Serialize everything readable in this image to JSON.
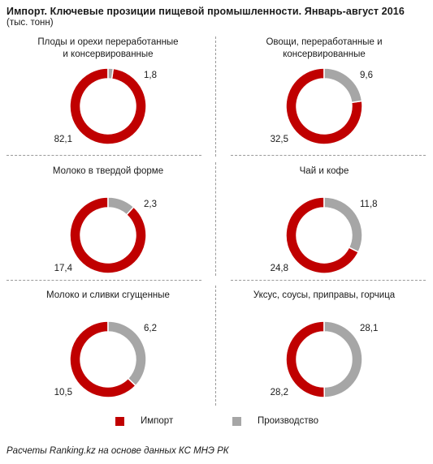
{
  "title": "Импорт. Ключевые прозиции пищевой промышленности. Январь-август  2016",
  "subtitle": "(тыс. тонн)",
  "legend": [
    {
      "name": "Импорт",
      "color": "#c00000"
    },
    {
      "name": "Производство",
      "color": "#a6a6a6"
    }
  ],
  "source": "Расчеты Ranking.kz на основе данных КС МНЭ РК",
  "chart_data": [
    {
      "type": "pie",
      "title": "Плоды и орехи переработанные и консервированные",
      "categories": [
        "Импорт",
        "Производство"
      ],
      "values": [
        82.1,
        1.8
      ],
      "labels": [
        "82,1",
        "1,8"
      ]
    },
    {
      "type": "pie",
      "title": "Овощи, переработанные и консервированные",
      "categories": [
        "Импорт",
        "Производство"
      ],
      "values": [
        32.5,
        9.6
      ],
      "labels": [
        "32,5",
        "9,6"
      ]
    },
    {
      "type": "pie",
      "title": "Молоко в твердой форме",
      "categories": [
        "Импорт",
        "Производство"
      ],
      "values": [
        17.4,
        2.3
      ],
      "labels": [
        "17,4",
        "2,3"
      ]
    },
    {
      "type": "pie",
      "title": "Чай и кофе",
      "categories": [
        "Импорт",
        "Производство"
      ],
      "values": [
        24.8,
        11.8
      ],
      "labels": [
        "24,8",
        "11,8"
      ]
    },
    {
      "type": "pie",
      "title": "Молоко и сливки сгущенные",
      "categories": [
        "Импорт",
        "Производство"
      ],
      "values": [
        10.5,
        6.2
      ],
      "labels": [
        "10,5",
        "6,2"
      ]
    },
    {
      "type": "pie",
      "title": "Уксус, соусы, приправы, горчица",
      "categories": [
        "Импорт",
        "Производство"
      ],
      "values": [
        28.2,
        28.1
      ],
      "labels": [
        "28,2",
        "28,1"
      ]
    }
  ]
}
